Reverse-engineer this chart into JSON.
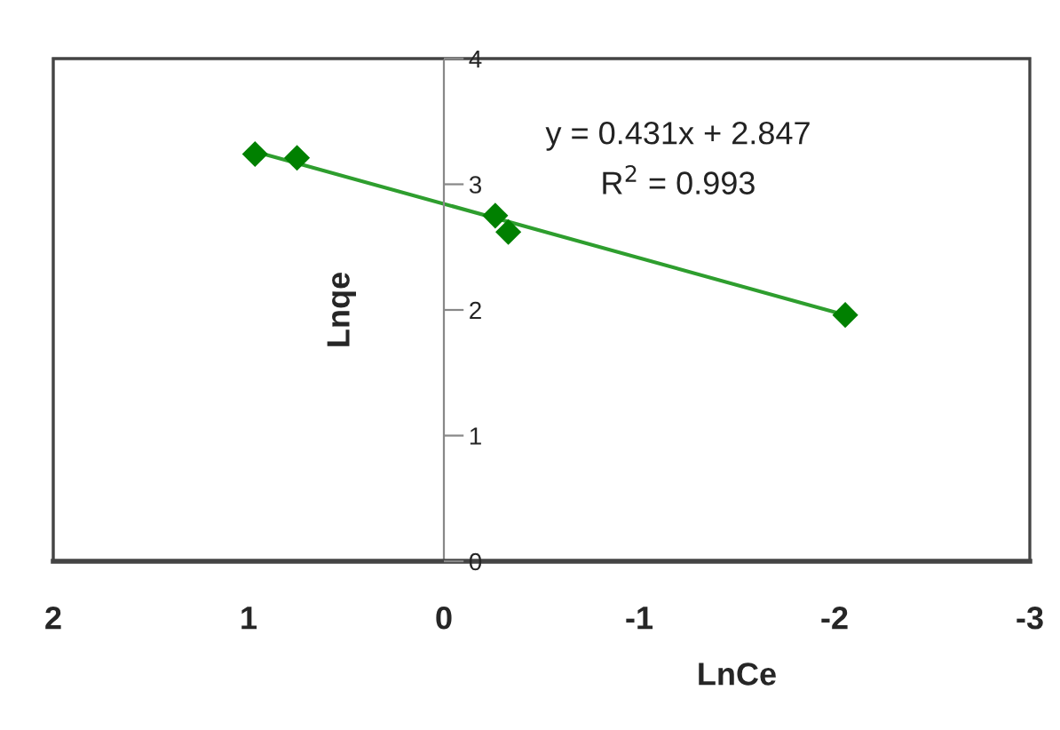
{
  "chart_data": {
    "type": "scatter",
    "xlabel": "LnCe",
    "ylabel": "Lnqe",
    "x": [
      0.967,
      0.752,
      -0.263,
      -0.33,
      -2.055
    ],
    "series": [
      {
        "color": "#008000",
        "marker": "diamond",
        "values": [
          3.24,
          3.21,
          2.75,
          2.62,
          1.96
        ]
      },
      {
        "type": "line",
        "color": "#2e9e2e",
        "marker": "none",
        "x": [
          0.967,
          -2.055
        ],
        "values": [
          3.26,
          1.96
        ]
      }
    ],
    "xlim": [
      2,
      -3
    ],
    "xticks": [
      2,
      1,
      0,
      -1,
      -2,
      -3
    ],
    "ylim": [
      0,
      4
    ],
    "yticks": [
      0,
      1,
      2,
      3,
      4
    ],
    "annotations": [
      "y = 0.431x + 2.847",
      "R$^{2}$ = 0.993"
    ],
    "grid": false,
    "legend": false
  }
}
